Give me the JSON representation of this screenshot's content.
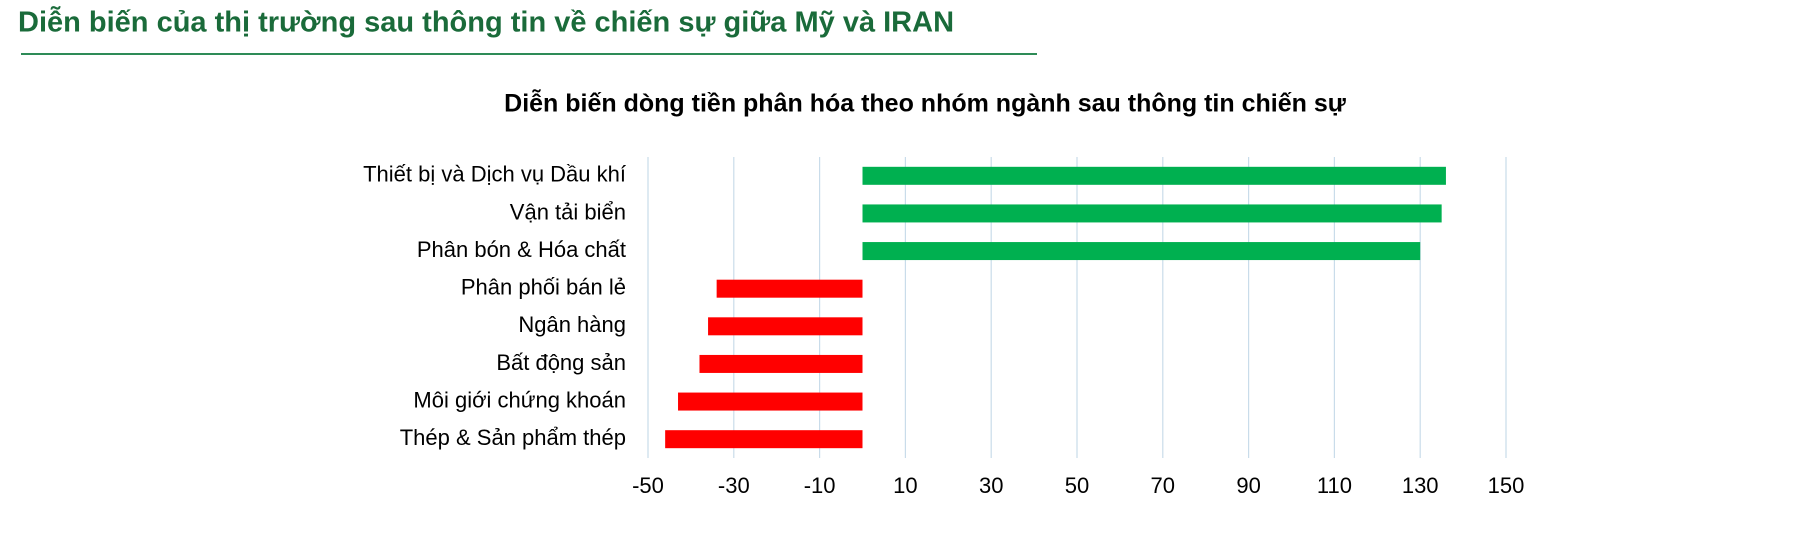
{
  "header": {
    "title": "Diễn biến của thị trường sau thông tin về chiến sự giữa Mỹ và IRAN"
  },
  "chart_data": {
    "type": "hbar",
    "title": "Diễn biến dòng tiền phân hóa theo nhóm ngành sau thông tin chiến sự",
    "categories": [
      "Thiết bị và Dịch vụ Dầu khí",
      "Vận tải biển",
      "Phân bón & Hóa chất",
      "Phân phối bán lẻ",
      "Ngân hàng",
      "Bất động sản",
      "Môi giới chứng khoán",
      "Thép & Sản phẩm thép"
    ],
    "values": [
      136,
      135,
      130,
      -34,
      -36,
      -38,
      -43,
      -46
    ],
    "colors": [
      "#00b050",
      "#00b050",
      "#00b050",
      "#ff0000",
      "#ff0000",
      "#ff0000",
      "#ff0000",
      "#ff0000"
    ],
    "xlim": [
      -50,
      150
    ],
    "xticks": [
      -50,
      -30,
      -10,
      10,
      30,
      50,
      70,
      90,
      110,
      130,
      150
    ],
    "grid": true
  }
}
